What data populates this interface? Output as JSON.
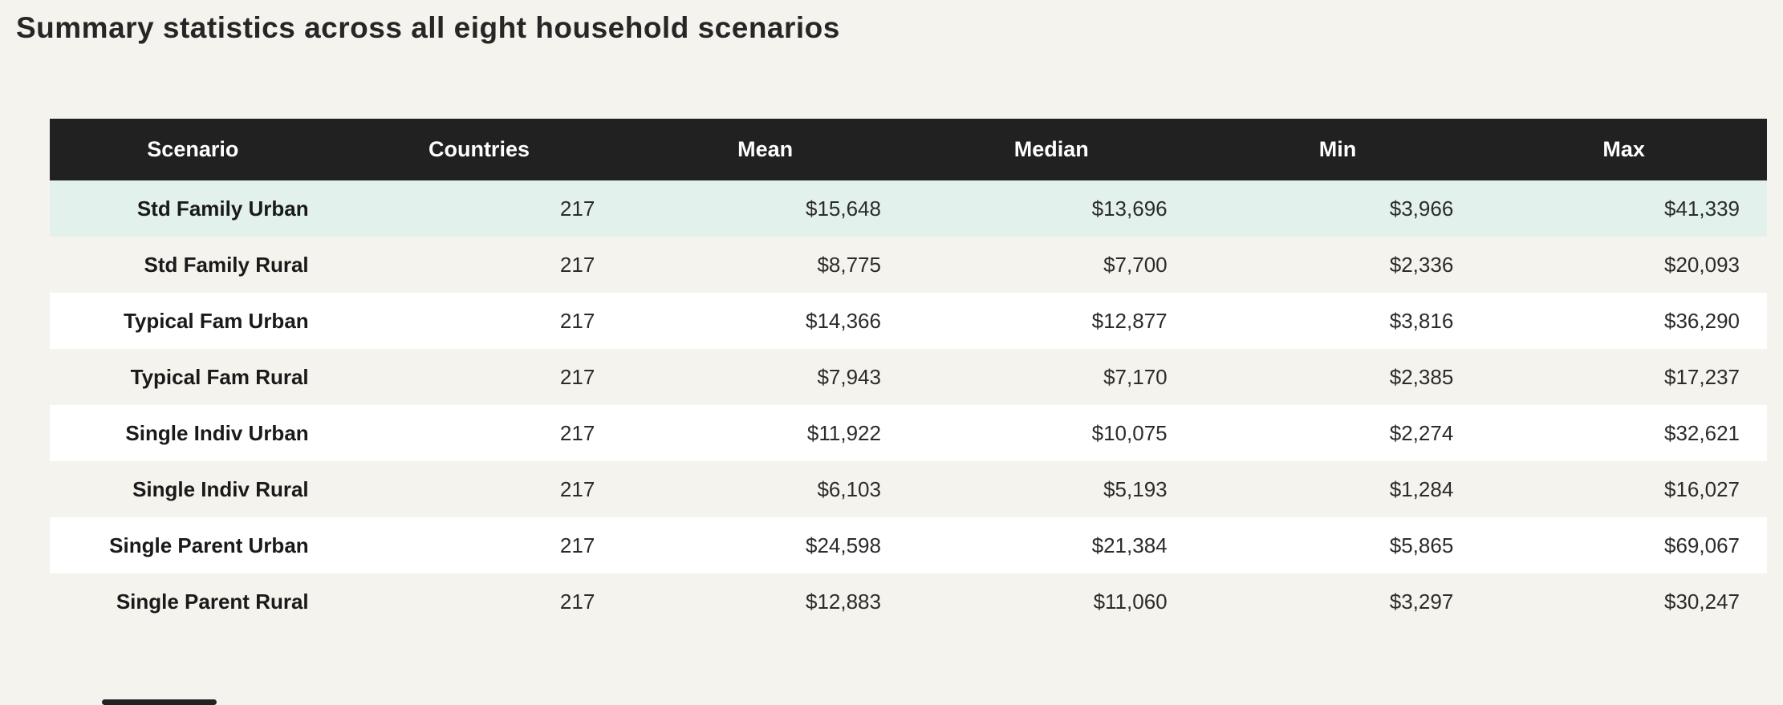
{
  "page": {
    "title": "Summary statistics across all eight household scenarios"
  },
  "colors": {
    "page_bg": "#f5f3ed",
    "header_bg": "#212121",
    "header_text": "#ffffff",
    "highlight_row_bg": "#e3f1ed",
    "white_row_bg": "#ffffff",
    "stripe_row_bg": "#f5f3ed",
    "body_text": "#2b2b2b"
  },
  "table": {
    "columns": [
      "Scenario",
      "Countries",
      "Mean",
      "Median",
      "Min",
      "Max"
    ],
    "rows": [
      {
        "scenario": "Std Family Urban",
        "countries": "217",
        "mean": "$15,648",
        "median": "$13,696",
        "min": "$3,966",
        "max": "$41,339",
        "highlight": true
      },
      {
        "scenario": "Std Family Rural",
        "countries": "217",
        "mean": "$8,775",
        "median": "$7,700",
        "min": "$2,336",
        "max": "$20,093",
        "highlight": false
      },
      {
        "scenario": "Typical Fam Urban",
        "countries": "217",
        "mean": "$14,366",
        "median": "$12,877",
        "min": "$3,816",
        "max": "$36,290",
        "highlight": false
      },
      {
        "scenario": "Typical Fam Rural",
        "countries": "217",
        "mean": "$7,943",
        "median": "$7,170",
        "min": "$2,385",
        "max": "$17,237",
        "highlight": false
      },
      {
        "scenario": "Single Indiv Urban",
        "countries": "217",
        "mean": "$11,922",
        "median": "$10,075",
        "min": "$2,274",
        "max": "$32,621",
        "highlight": false
      },
      {
        "scenario": "Single Indiv Rural",
        "countries": "217",
        "mean": "$6,103",
        "median": "$5,193",
        "min": "$1,284",
        "max": "$16,027",
        "highlight": false
      },
      {
        "scenario": "Single Parent Urban",
        "countries": "217",
        "mean": "$24,598",
        "median": "$21,384",
        "min": "$5,865",
        "max": "$69,067",
        "highlight": false
      },
      {
        "scenario": "Single Parent Rural",
        "countries": "217",
        "mean": "$12,883",
        "median": "$11,060",
        "min": "$3,297",
        "max": "$30,247",
        "highlight": false
      }
    ]
  },
  "chart_data": {
    "type": "table",
    "title": "Summary statistics across all eight household scenarios",
    "columns": [
      "Scenario",
      "Countries",
      "Mean",
      "Median",
      "Min",
      "Max"
    ],
    "currency_columns": [
      "Mean",
      "Median",
      "Min",
      "Max"
    ],
    "rows": [
      [
        "Std Family Urban",
        217,
        15648,
        13696,
        3966,
        41339
      ],
      [
        "Std Family Rural",
        217,
        8775,
        7700,
        2336,
        20093
      ],
      [
        "Typical Fam Urban",
        217,
        14366,
        12877,
        3816,
        36290
      ],
      [
        "Typical Fam Rural",
        217,
        7943,
        7170,
        2385,
        17237
      ],
      [
        "Single Indiv Urban",
        217,
        11922,
        10075,
        2274,
        32621
      ],
      [
        "Single Indiv Rural",
        217,
        6103,
        5193,
        1284,
        16027
      ],
      [
        "Single Parent Urban",
        217,
        24598,
        21384,
        5865,
        69067
      ],
      [
        "Single Parent Rural",
        217,
        12883,
        11060,
        3297,
        30247
      ]
    ]
  }
}
